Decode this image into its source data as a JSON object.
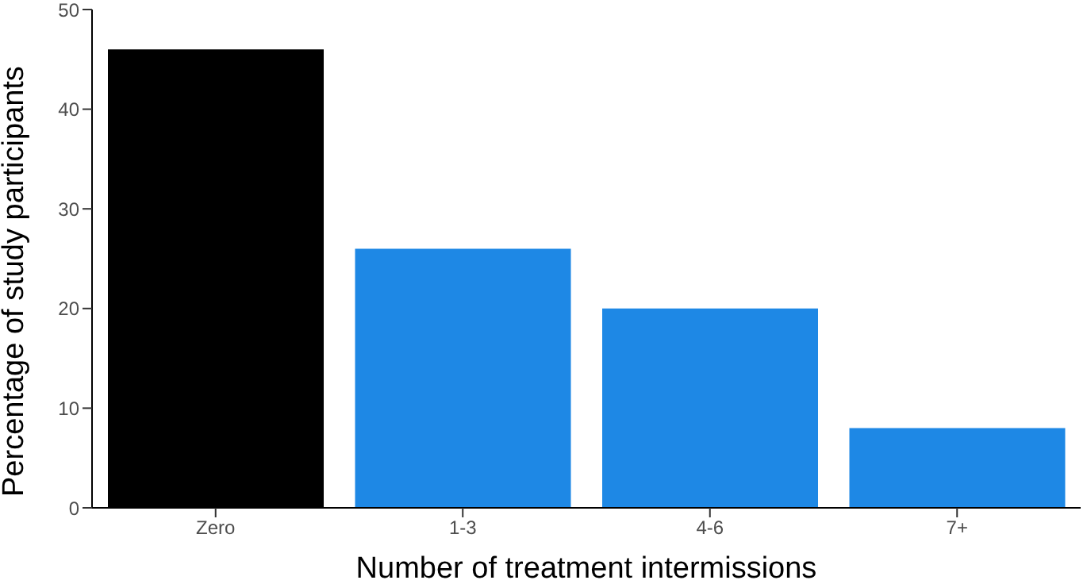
{
  "chart_data": {
    "type": "bar",
    "xlabel": "Number of treatment intermissions",
    "ylabel": "Percentage of study participants",
    "categories": [
      "Zero",
      "1-3",
      "4-6",
      "7+"
    ],
    "values": [
      46,
      26,
      20,
      8
    ],
    "colors": [
      "#000000",
      "#1e88e5",
      "#1e88e5",
      "#1e88e5"
    ],
    "ylim": [
      0,
      50
    ],
    "yticks": [
      0,
      10,
      20,
      30,
      40,
      50
    ],
    "grid": false
  }
}
